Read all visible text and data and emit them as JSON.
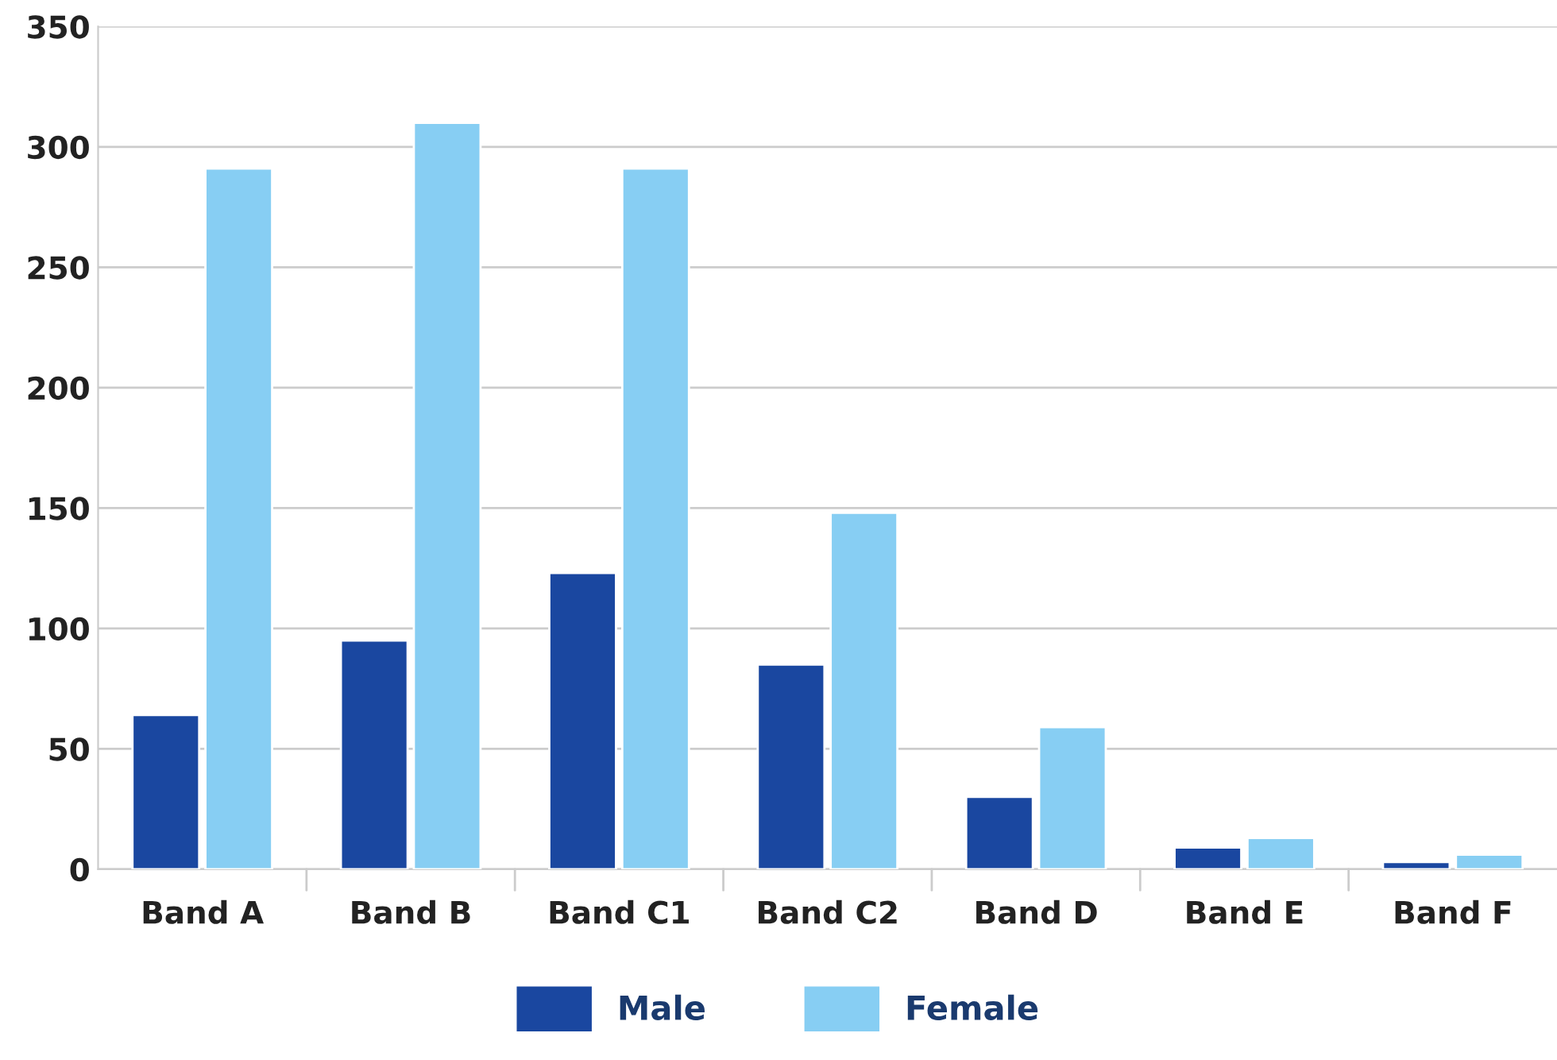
{
  "chart_data": {
    "type": "bar",
    "categories": [
      "Band A",
      "Band B",
      "Band C1",
      "Band C2",
      "Band D",
      "Band E",
      "Band F"
    ],
    "series": [
      {
        "name": "Male",
        "color": "#1a47a0",
        "values": [
          64,
          95,
          123,
          85,
          30,
          9,
          3
        ]
      },
      {
        "name": "Female",
        "color": "#87cef3",
        "values": [
          291,
          310,
          291,
          148,
          59,
          13,
          6
        ]
      }
    ],
    "ylim": [
      0,
      350
    ],
    "yticks": [
      0,
      50,
      100,
      150,
      200,
      250,
      300,
      350
    ],
    "grid": "y",
    "legend": "bottom"
  }
}
